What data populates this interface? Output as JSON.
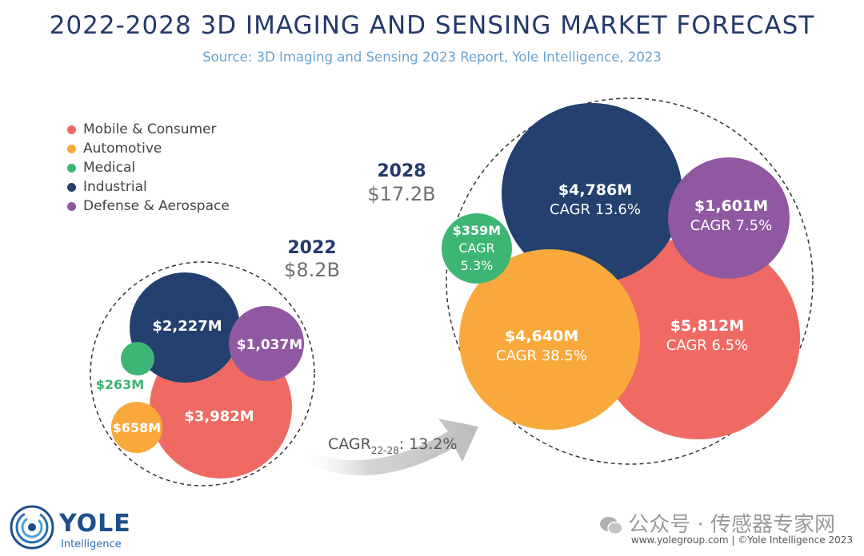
{
  "chart_data": {
    "type": "bubble",
    "title": "2022-2028 3D IMAGING AND SENSING MARKET FORECAST",
    "subtitle": "Source: 3D Imaging and Sensing 2023 Report, Yole Intelligence, 2023",
    "legend": [
      {
        "name": "Mobile & Consumer",
        "color": "#ef6a63"
      },
      {
        "name": "Automotive",
        "color": "#f9a93b"
      },
      {
        "name": "Medical",
        "color": "#3db574"
      },
      {
        "name": "Industrial",
        "color": "#24406f"
      },
      {
        "name": "Defense & Aerospace",
        "color": "#8f58a1"
      }
    ],
    "groups": [
      {
        "year": "2022",
        "total": "$8.2B",
        "bubbles": [
          {
            "segment": "Mobile & Consumer",
            "value_musd": 3982,
            "label": "$3,982M"
          },
          {
            "segment": "Automotive",
            "value_musd": 658,
            "label": "$658M"
          },
          {
            "segment": "Medical",
            "value_musd": 263,
            "label": "$263M"
          },
          {
            "segment": "Industrial",
            "value_musd": 2227,
            "label": "$2,227M"
          },
          {
            "segment": "Defense & Aerospace",
            "value_musd": 1037,
            "label": "$1,037M"
          }
        ]
      },
      {
        "year": "2028",
        "total": "$17.2B",
        "bubbles": [
          {
            "segment": "Mobile & Consumer",
            "value_musd": 5812,
            "label": "$5,812M",
            "cagr": "CAGR 6.5%"
          },
          {
            "segment": "Automotive",
            "value_musd": 4640,
            "label": "$4,640M",
            "cagr": "CAGR 38.5%"
          },
          {
            "segment": "Medical",
            "value_musd": 359,
            "label": "$359M",
            "cagr": "CAGR 5.3%"
          },
          {
            "segment": "Industrial",
            "value_musd": 4786,
            "label": "$4,786M",
            "cagr": "CAGR 13.6%"
          },
          {
            "segment": "Defense & Aerospace",
            "value_musd": 1601,
            "label": "$1,601M",
            "cagr": "CAGR 7.5%"
          }
        ]
      }
    ],
    "overall_cagr": {
      "prefix": "CAGR",
      "subscript": "22-28",
      "value": ": 13.2%"
    }
  },
  "branding": {
    "logo_name": "YOLE",
    "logo_sub": "Intelligence",
    "footer": "www.yolegroup.com | ©Yole Intelligence 2023",
    "watermark": "公众号 · 传感器专家网"
  }
}
